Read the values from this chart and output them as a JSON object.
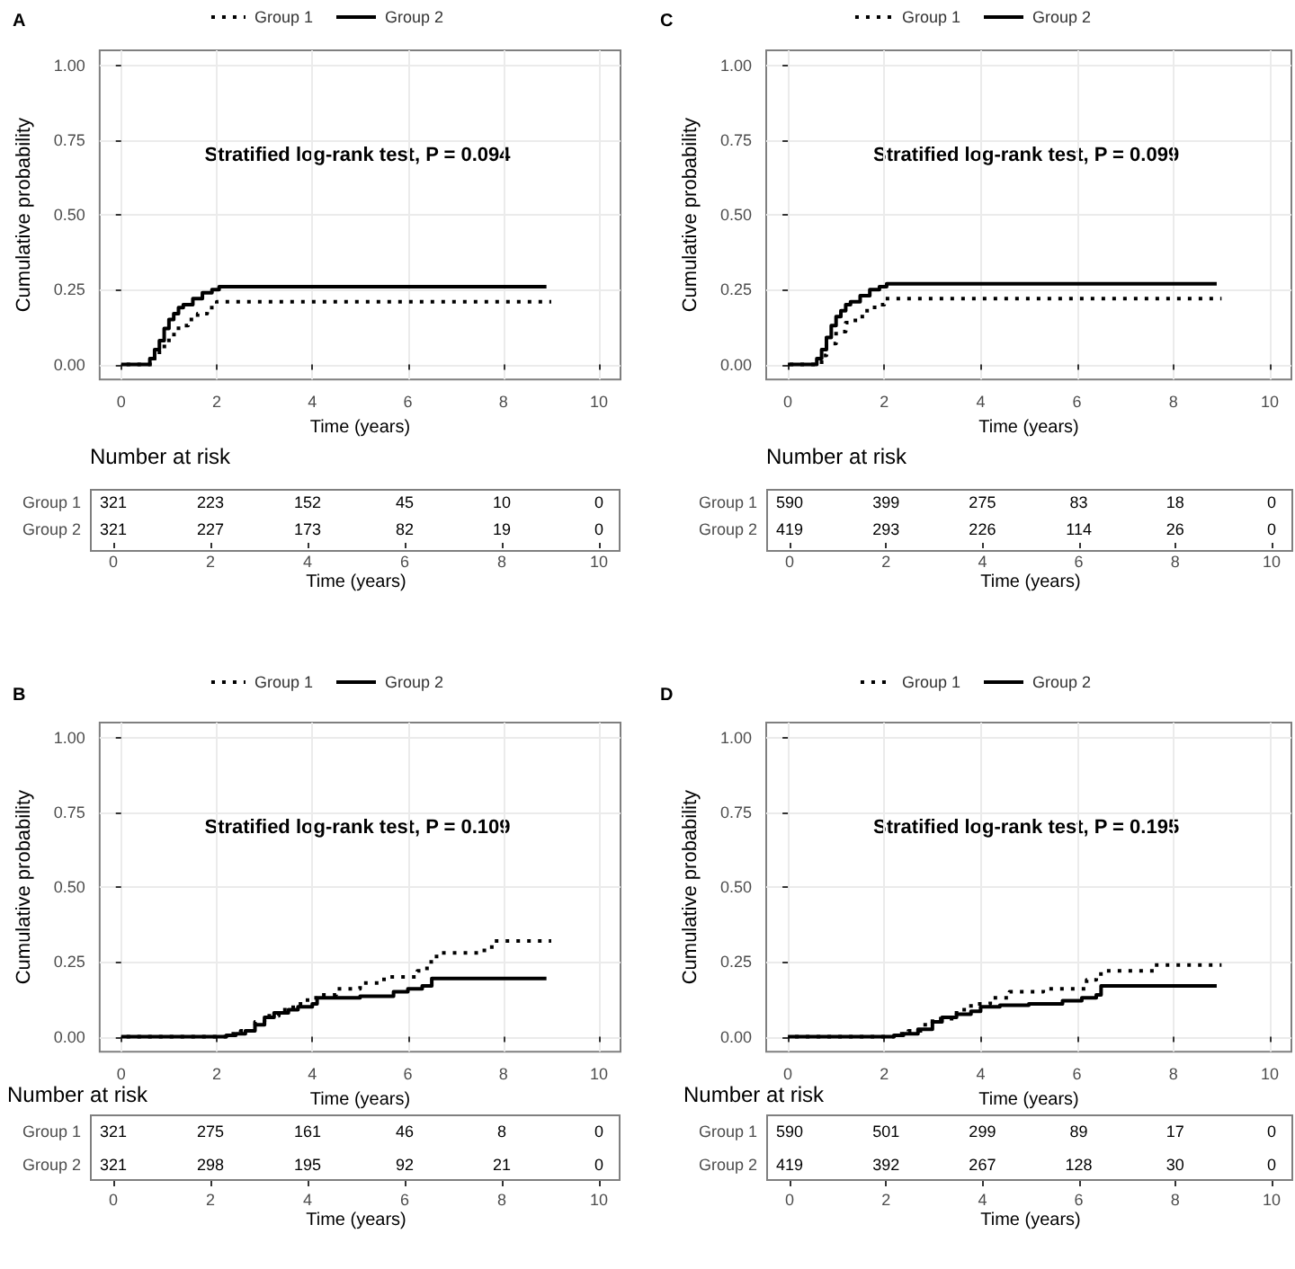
{
  "chart_data": [
    {
      "type": "step",
      "title": "A",
      "xlabel": "Time (years)",
      "ylabel": "Cumulative probability",
      "xlim": [
        -0.45,
        10.45
      ],
      "xticks": [
        0,
        2,
        4,
        6,
        8,
        10
      ],
      "ylim": [
        -0.05,
        1.05
      ],
      "yticks": [
        {
          "value": 0,
          "label": "0.00"
        },
        {
          "value": 0.25,
          "label": "0.25"
        },
        {
          "value": 0.5,
          "label": "0.50"
        },
        {
          "value": 0.75,
          "label": "0.75"
        },
        {
          "value": 1,
          "label": "1.00"
        }
      ],
      "grid": true,
      "legend": "top",
      "marker": "none",
      "annotations": [
        "Stratified log-rank test, P = 0.094"
      ],
      "series": [
        {
          "name": "Group 1",
          "color": "#000000",
          "line_style": "dotted",
          "x": [
            0,
            0.7,
            0.8,
            1.0,
            1.2,
            1.4,
            1.6,
            1.8,
            2.0,
            9.0
          ],
          "values": [
            0,
            0.03,
            0.06,
            0.1,
            0.13,
            0.15,
            0.17,
            0.19,
            0.21,
            0.21
          ]
        },
        {
          "name": "Group 2",
          "color": "#000000",
          "line_style": "solid",
          "x": [
            0,
            0.6,
            0.7,
            0.8,
            0.9,
            1.0,
            1.1,
            1.2,
            1.3,
            1.5,
            1.7,
            1.9,
            2.05,
            8.9
          ],
          "values": [
            0,
            0.02,
            0.05,
            0.08,
            0.12,
            0.15,
            0.17,
            0.19,
            0.2,
            0.22,
            0.24,
            0.25,
            0.26,
            0.26
          ]
        }
      ]
    },
    {
      "type": "heatmap",
      "title": "Number at risk",
      "xlabel": "Time (years)",
      "categories": [
        "0",
        "2",
        "4",
        "6",
        "8",
        "10"
      ],
      "y_categories": [
        "Group 1",
        "Group 2"
      ],
      "data_labels": true,
      "cells": [
        [
          321,
          223,
          152,
          45,
          10,
          0
        ],
        [
          321,
          227,
          173,
          82,
          19,
          0
        ]
      ]
    },
    {
      "type": "step",
      "title": "C",
      "xlabel": "Time (years)",
      "ylabel": "Cumulative probability",
      "xlim": [
        -0.45,
        10.45
      ],
      "xticks": [
        0,
        2,
        4,
        6,
        8,
        10
      ],
      "ylim": [
        -0.05,
        1.05
      ],
      "yticks": [
        {
          "value": 0,
          "label": "0.00"
        },
        {
          "value": 0.25,
          "label": "0.25"
        },
        {
          "value": 0.5,
          "label": "0.50"
        },
        {
          "value": 0.75,
          "label": "0.75"
        },
        {
          "value": 1,
          "label": "1.00"
        }
      ],
      "grid": true,
      "legend": "top",
      "marker": "none",
      "annotations": [
        "Stratified log-rank test, P = 0.099"
      ],
      "series": [
        {
          "name": "Group 1",
          "color": "#000000",
          "line_style": "dotted",
          "x": [
            0,
            0.7,
            0.8,
            1.0,
            1.2,
            1.4,
            1.6,
            1.8,
            2.0,
            9.0
          ],
          "values": [
            0,
            0.03,
            0.07,
            0.11,
            0.14,
            0.16,
            0.18,
            0.2,
            0.22,
            0.22
          ]
        },
        {
          "name": "Group 2",
          "color": "#000000",
          "line_style": "solid",
          "x": [
            0,
            0.6,
            0.7,
            0.8,
            0.9,
            1.0,
            1.1,
            1.2,
            1.3,
            1.5,
            1.7,
            1.9,
            2.05,
            8.9
          ],
          "values": [
            0,
            0.02,
            0.05,
            0.09,
            0.13,
            0.16,
            0.18,
            0.2,
            0.21,
            0.23,
            0.25,
            0.26,
            0.27,
            0.27
          ]
        }
      ]
    },
    {
      "type": "heatmap",
      "title": "Number at risk",
      "xlabel": "Time (years)",
      "categories": [
        "0",
        "2",
        "4",
        "6",
        "8",
        "10"
      ],
      "y_categories": [
        "Group 1",
        "Group 2"
      ],
      "data_labels": true,
      "cells": [
        [
          590,
          399,
          275,
          83,
          18,
          0
        ],
        [
          419,
          293,
          226,
          114,
          26,
          0
        ]
      ]
    },
    {
      "type": "step",
      "title": "B",
      "xlabel": "Time (years)",
      "ylabel": "Cumulative probability",
      "xlim": [
        -0.45,
        10.45
      ],
      "xticks": [
        0,
        2,
        4,
        6,
        8,
        10
      ],
      "ylim": [
        -0.05,
        1.05
      ],
      "yticks": [
        {
          "value": 0,
          "label": "0.00"
        },
        {
          "value": 0.25,
          "label": "0.25"
        },
        {
          "value": 0.5,
          "label": "0.50"
        },
        {
          "value": 0.75,
          "label": "0.75"
        },
        {
          "value": 1,
          "label": "1.00"
        }
      ],
      "grid": true,
      "legend": "top",
      "marker": "none",
      "annotations": [
        "Stratified log-rank test, P = 0.109"
      ],
      "series": [
        {
          "name": "Group 1",
          "color": "#000000",
          "line_style": "dotted",
          "x": [
            0,
            2.2,
            2.5,
            2.8,
            3.0,
            3.3,
            3.6,
            3.9,
            4.1,
            4.5,
            5.0,
            5.5,
            6.2,
            6.4,
            6.6,
            7.6,
            7.8,
            9.0
          ],
          "values": [
            0,
            0.01,
            0.02,
            0.05,
            0.07,
            0.09,
            0.11,
            0.13,
            0.14,
            0.16,
            0.18,
            0.2,
            0.22,
            0.25,
            0.28,
            0.3,
            0.32,
            0.32
          ]
        },
        {
          "name": "Group 2",
          "color": "#000000",
          "line_style": "solid",
          "x": [
            0,
            2.2,
            2.4,
            2.6,
            2.8,
            3.0,
            3.2,
            3.5,
            3.7,
            4.0,
            4.1,
            5.0,
            5.7,
            6.0,
            6.3,
            6.5,
            8.9
          ],
          "values": [
            0,
            0.005,
            0.01,
            0.02,
            0.04,
            0.065,
            0.08,
            0.09,
            0.1,
            0.11,
            0.13,
            0.135,
            0.15,
            0.16,
            0.17,
            0.195,
            0.195
          ]
        }
      ]
    },
    {
      "type": "heatmap",
      "title": "Number at risk",
      "xlabel": "Time (years)",
      "categories": [
        "0",
        "2",
        "4",
        "6",
        "8",
        "10"
      ],
      "y_categories": [
        "Group 1",
        "Group 2"
      ],
      "data_labels": true,
      "cells": [
        [
          321,
          275,
          161,
          46,
          8,
          0
        ],
        [
          321,
          298,
          195,
          92,
          21,
          0
        ]
      ]
    },
    {
      "type": "step",
      "title": "D",
      "xlabel": "Time (years)",
      "ylabel": "Cumulative probability",
      "xlim": [
        -0.45,
        10.45
      ],
      "xticks": [
        0,
        2,
        4,
        6,
        8,
        10
      ],
      "ylim": [
        -0.05,
        1.05
      ],
      "yticks": [
        {
          "value": 0,
          "label": "0.00"
        },
        {
          "value": 0.25,
          "label": "0.25"
        },
        {
          "value": 0.5,
          "label": "0.50"
        },
        {
          "value": 0.75,
          "label": "0.75"
        },
        {
          "value": 1,
          "label": "1.00"
        }
      ],
      "grid": true,
      "legend": "top",
      "marker": "none",
      "annotations": [
        "Stratified log-rank test, P = 0.195"
      ],
      "series": [
        {
          "name": "Group 1",
          "color": "#000000",
          "line_style": "dotted",
          "x": [
            0,
            2.2,
            2.5,
            2.8,
            3.0,
            3.5,
            3.8,
            4.2,
            4.6,
            5.3,
            6.2,
            6.4,
            6.6,
            7.6,
            9.0
          ],
          "values": [
            0,
            0.01,
            0.02,
            0.04,
            0.06,
            0.09,
            0.11,
            0.13,
            0.15,
            0.16,
            0.19,
            0.21,
            0.22,
            0.24,
            0.24
          ]
        },
        {
          "name": "Group 2",
          "color": "#000000",
          "line_style": "solid",
          "x": [
            0,
            2.2,
            2.4,
            2.7,
            3.0,
            3.2,
            3.5,
            3.8,
            4.0,
            4.4,
            5.0,
            5.7,
            6.1,
            6.4,
            6.5,
            8.9
          ],
          "values": [
            0,
            0.005,
            0.01,
            0.025,
            0.05,
            0.065,
            0.075,
            0.085,
            0.1,
            0.105,
            0.11,
            0.12,
            0.13,
            0.14,
            0.17,
            0.17
          ]
        }
      ]
    },
    {
      "type": "heatmap",
      "title": "Number at risk",
      "xlabel": "Time (years)",
      "categories": [
        "0",
        "2",
        "4",
        "6",
        "8",
        "10"
      ],
      "y_categories": [
        "Group 1",
        "Group 2"
      ],
      "data_labels": true,
      "cells": [
        [
          590,
          501,
          299,
          89,
          17,
          0
        ],
        [
          419,
          392,
          267,
          128,
          30,
          0
        ]
      ]
    }
  ]
}
